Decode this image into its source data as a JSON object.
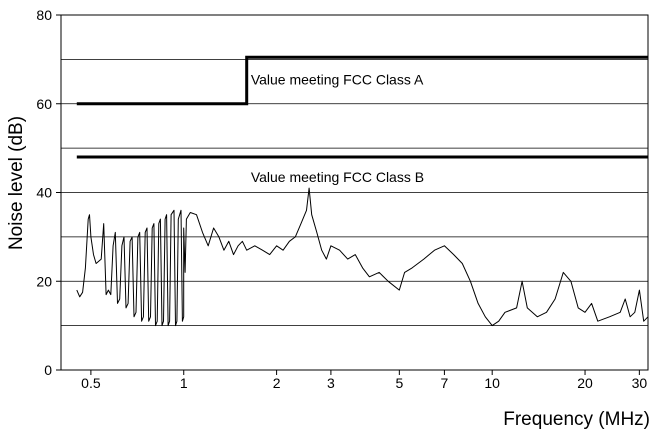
{
  "chart_data": {
    "type": "line",
    "title": "",
    "xlabel": "Frequency (MHz)",
    "ylabel": "Noise level  (dB)",
    "x_scale": "log",
    "xlim": [
      0.4,
      32
    ],
    "ylim": [
      0,
      80
    ],
    "x_ticks": [
      0.5,
      1,
      2,
      3,
      5,
      7,
      10,
      20,
      30
    ],
    "x_tick_labels": [
      "0.5",
      "1",
      "2",
      "3",
      "5",
      "7",
      "10",
      "20",
      "30"
    ],
    "y_ticks": [
      0,
      20,
      40,
      60,
      80
    ],
    "y_tick_labels": [
      "0",
      "20",
      "40",
      "60",
      "80"
    ],
    "grid": "horizontal",
    "limits": [
      {
        "name": "Value meeting FCC Class A",
        "points": [
          [
            0.45,
            60
          ],
          [
            1.6,
            60
          ],
          [
            1.6,
            70.5
          ],
          [
            32,
            70.5
          ]
        ]
      },
      {
        "name": "Value meeting FCC Class B",
        "points": [
          [
            0.45,
            48
          ],
          [
            32,
            48
          ]
        ]
      }
    ],
    "annotations": [
      {
        "text": "Value meeting FCC Class A",
        "x": 1.65,
        "y": 65.5
      },
      {
        "text": "Value meeting FCC Class B",
        "x": 1.65,
        "y": 43.5
      }
    ],
    "series": [
      {
        "values": [
          [
            0.45,
            18
          ],
          [
            0.46,
            16.5
          ],
          [
            0.47,
            17.5
          ],
          [
            0.48,
            23
          ],
          [
            0.49,
            34
          ],
          [
            0.495,
            35
          ],
          [
            0.5,
            30
          ],
          [
            0.51,
            26
          ],
          [
            0.52,
            24
          ],
          [
            0.54,
            25
          ],
          [
            0.55,
            33
          ],
          [
            0.56,
            17
          ],
          [
            0.57,
            18
          ],
          [
            0.58,
            17
          ],
          [
            0.59,
            28
          ],
          [
            0.6,
            31
          ],
          [
            0.61,
            15
          ],
          [
            0.62,
            16
          ],
          [
            0.63,
            28
          ],
          [
            0.64,
            30
          ],
          [
            0.65,
            14
          ],
          [
            0.66,
            15
          ],
          [
            0.67,
            29
          ],
          [
            0.68,
            30
          ],
          [
            0.69,
            12
          ],
          [
            0.7,
            13
          ],
          [
            0.71,
            30
          ],
          [
            0.72,
            31
          ],
          [
            0.73,
            11
          ],
          [
            0.74,
            12
          ],
          [
            0.75,
            31
          ],
          [
            0.76,
            32
          ],
          [
            0.77,
            11
          ],
          [
            0.78,
            12
          ],
          [
            0.79,
            32
          ],
          [
            0.8,
            33
          ],
          [
            0.81,
            10
          ],
          [
            0.82,
            11
          ],
          [
            0.83,
            33
          ],
          [
            0.84,
            34
          ],
          [
            0.85,
            10
          ],
          [
            0.86,
            11
          ],
          [
            0.87,
            34
          ],
          [
            0.88,
            35
          ],
          [
            0.89,
            10
          ],
          [
            0.9,
            11
          ],
          [
            0.91,
            35
          ],
          [
            0.93,
            36
          ],
          [
            0.94,
            10
          ],
          [
            0.95,
            11
          ],
          [
            0.96,
            34
          ],
          [
            0.98,
            36
          ],
          [
            0.99,
            11
          ],
          [
            1.0,
            12
          ],
          [
            1.0,
            32
          ],
          [
            1.01,
            22
          ],
          [
            1.02,
            34
          ],
          [
            1.05,
            35.5
          ],
          [
            1.1,
            35
          ],
          [
            1.15,
            31
          ],
          [
            1.2,
            28
          ],
          [
            1.25,
            32
          ],
          [
            1.3,
            30
          ],
          [
            1.35,
            27
          ],
          [
            1.4,
            29
          ],
          [
            1.45,
            26
          ],
          [
            1.5,
            28
          ],
          [
            1.55,
            29
          ],
          [
            1.6,
            27
          ],
          [
            1.7,
            28
          ],
          [
            1.8,
            27
          ],
          [
            1.9,
            26
          ],
          [
            2.0,
            28
          ],
          [
            2.1,
            27
          ],
          [
            2.2,
            29
          ],
          [
            2.3,
            30
          ],
          [
            2.4,
            33
          ],
          [
            2.5,
            36
          ],
          [
            2.55,
            41
          ],
          [
            2.6,
            35
          ],
          [
            2.7,
            31
          ],
          [
            2.8,
            27
          ],
          [
            2.9,
            25
          ],
          [
            3.0,
            28
          ],
          [
            3.2,
            27
          ],
          [
            3.4,
            25
          ],
          [
            3.6,
            26
          ],
          [
            3.8,
            23
          ],
          [
            4.0,
            21
          ],
          [
            4.3,
            22
          ],
          [
            4.6,
            20
          ],
          [
            5.0,
            18
          ],
          [
            5.2,
            22
          ],
          [
            5.5,
            23
          ],
          [
            6.0,
            25
          ],
          [
            6.5,
            27
          ],
          [
            7.0,
            28
          ],
          [
            7.5,
            26
          ],
          [
            8.0,
            24
          ],
          [
            8.5,
            20
          ],
          [
            9.0,
            15
          ],
          [
            9.5,
            12
          ],
          [
            10.0,
            10
          ],
          [
            10.5,
            11
          ],
          [
            11.0,
            13
          ],
          [
            12.0,
            14
          ],
          [
            12.5,
            20
          ],
          [
            13.0,
            14
          ],
          [
            14.0,
            12
          ],
          [
            15.0,
            13
          ],
          [
            16.0,
            16
          ],
          [
            17.0,
            22
          ],
          [
            18.0,
            20
          ],
          [
            19.0,
            14
          ],
          [
            20.0,
            13
          ],
          [
            21.0,
            15
          ],
          [
            22.0,
            11
          ],
          [
            24.0,
            12
          ],
          [
            26.0,
            13
          ],
          [
            27.0,
            16
          ],
          [
            28.0,
            12
          ],
          [
            29.0,
            13
          ],
          [
            30.0,
            18
          ],
          [
            31.0,
            11
          ],
          [
            32.0,
            12
          ]
        ]
      }
    ]
  }
}
